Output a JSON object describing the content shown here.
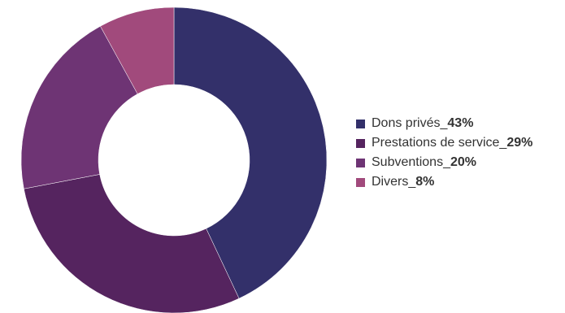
{
  "chart_data": {
    "type": "pie",
    "variant": "donut",
    "title": "",
    "separator": "_",
    "slices": [
      {
        "label": "Dons privés",
        "value": 43,
        "value_label": "43%",
        "color": "#33306a"
      },
      {
        "label": "Prestations de service",
        "value": 29,
        "value_label": "29%",
        "color": "#55245f"
      },
      {
        "label": "Subventions",
        "value": 20,
        "value_label": "20%",
        "color": "#6e3474"
      },
      {
        "label": "Divers",
        "value": 8,
        "value_label": "8%",
        "color": "#a14a7c"
      }
    ],
    "legend_position": "right",
    "start": "top",
    "direction": "clockwise"
  }
}
